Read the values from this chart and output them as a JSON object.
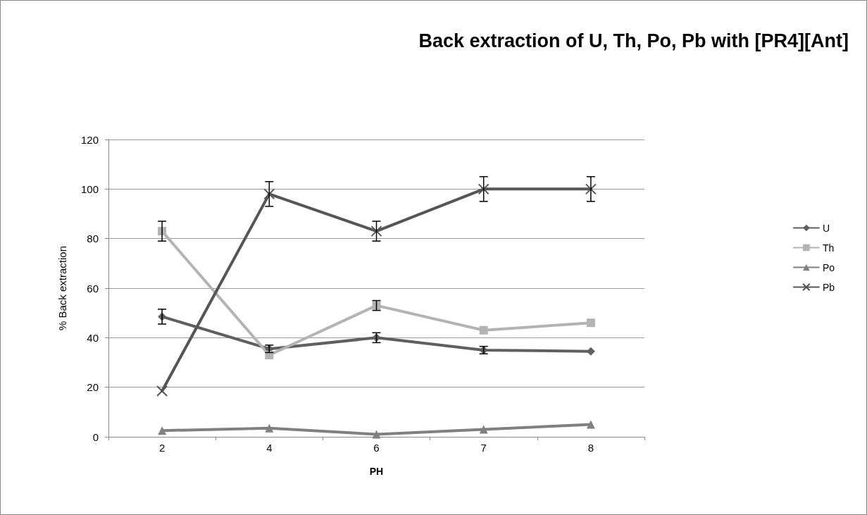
{
  "chart_data": {
    "type": "line",
    "title": "Back extraction of U, Th, Po, Pb with [PR4][Ant]",
    "xlabel": "PH",
    "ylabel": "% Back extraction",
    "categories": [
      "2",
      "4",
      "6",
      "7",
      "8"
    ],
    "series": [
      {
        "name": "U",
        "color": "#5f5f5f",
        "marker": "diamond",
        "values": [
          48.5,
          35.5,
          40,
          35,
          34.5
        ],
        "errors": [
          3,
          1.5,
          2,
          1.5,
          null
        ]
      },
      {
        "name": "Th",
        "color": "#b3b3b3",
        "marker": "square",
        "values": [
          83,
          33,
          53,
          43,
          46
        ],
        "errors": [
          4,
          null,
          2,
          null,
          null
        ]
      },
      {
        "name": "Po",
        "color": "#808080",
        "marker": "triangle",
        "values": [
          2.5,
          3.5,
          1,
          3,
          5
        ]
      },
      {
        "name": "Pb",
        "color": "#555555",
        "marker": "cross",
        "values": [
          18.5,
          98,
          83,
          100,
          100
        ],
        "errors": [
          null,
          5,
          4,
          5,
          5
        ]
      }
    ],
    "ylim": [
      0,
      120
    ],
    "yticks": [
      0,
      20,
      40,
      60,
      80,
      100,
      120
    ],
    "grid": "y",
    "legend": "right"
  }
}
